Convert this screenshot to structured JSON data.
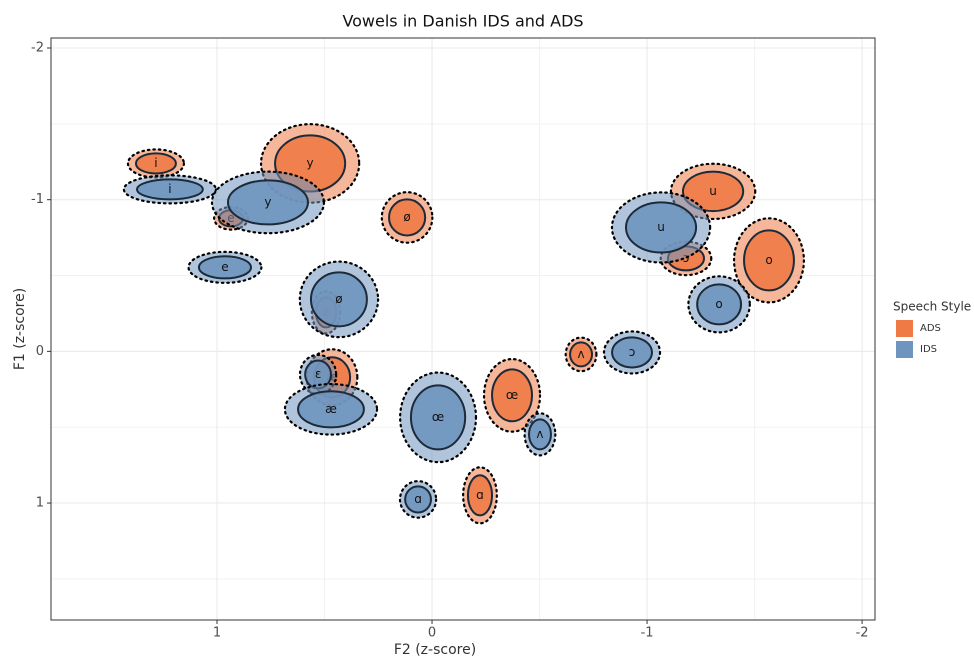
{
  "chart_data": {
    "type": "ellipse",
    "title": "Vowels in Danish IDS and ADS",
    "x_label": "F2 (z-score)",
    "y_label": "F1 (z-score)",
    "xlim": [
      1.772,
      -2.06
    ],
    "ylim": [
      -2.066,
      1.771
    ],
    "xticks": [
      1,
      0,
      -1,
      -2
    ],
    "yticks": [
      -2,
      -1,
      0,
      1
    ],
    "grid": true,
    "legend_title": "Speech Style",
    "legend_position": "right",
    "series": [
      {
        "name": "ADS",
        "color": "#ef7a45",
        "labels": [
          "i",
          "y",
          "e",
          "ø",
          "u",
          "ɔ",
          "o",
          "ɛ",
          "æ",
          "œ",
          "ʌ",
          "ɑ"
        ],
        "x": [
          1.284,
          0.567,
          0.935,
          0.116,
          -1.307,
          -1.181,
          -1.567,
          0.493,
          0.465,
          -0.372,
          -0.693,
          -0.223
        ],
        "y": [
          -1.239,
          -1.239,
          -0.877,
          -0.883,
          -1.055,
          -0.613,
          -0.6,
          -0.257,
          0.171,
          0.29,
          0.02,
          0.949
        ],
        "rx": [
          0.093,
          0.163,
          0.056,
          0.084,
          0.14,
          0.084,
          0.116,
          0.047,
          0.084,
          0.093,
          0.051,
          0.056
        ],
        "ry": [
          0.066,
          0.185,
          0.053,
          0.119,
          0.13,
          0.079,
          0.198,
          0.099,
          0.132,
          0.171,
          0.079,
          0.132
        ]
      },
      {
        "name": "IDS",
        "color": "#6f95bf",
        "labels": [
          "i",
          "y",
          "e",
          "ø",
          "u",
          "o",
          "ɔ",
          "ɛ",
          "æ",
          "œ",
          "ʌ",
          "ɑ"
        ],
        "x": [
          1.219,
          0.763,
          0.963,
          0.433,
          -1.065,
          -1.335,
          -0.93,
          0.53,
          0.47,
          -0.028,
          -0.502,
          0.065
        ],
        "y": [
          -1.068,
          -0.982,
          -0.554,
          -0.343,
          -0.817,
          -0.31,
          0.007,
          0.152,
          0.382,
          0.435,
          0.547,
          0.976
        ],
        "rx": [
          0.153,
          0.186,
          0.121,
          0.13,
          0.163,
          0.102,
          0.093,
          0.06,
          0.153,
          0.126,
          0.051,
          0.06
        ],
        "ry": [
          0.066,
          0.145,
          0.073,
          0.178,
          0.165,
          0.132,
          0.099,
          0.092,
          0.119,
          0.211,
          0.099,
          0.086
        ]
      }
    ]
  }
}
